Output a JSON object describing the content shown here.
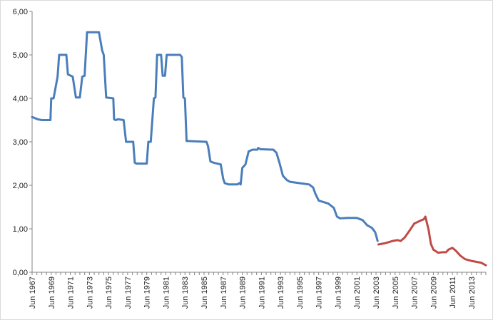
{
  "chart_data": {
    "type": "line",
    "title": "",
    "xlabel": "",
    "ylabel": "",
    "ylim": [
      0,
      6
    ],
    "y_ticks": [
      "0,00",
      "1,00",
      "2,00",
      "3,00",
      "4,00",
      "5,00",
      "6,00"
    ],
    "x_ticks": [
      "Jun 1967",
      "Jun 1969",
      "Jun 1971",
      "Jun 1973",
      "Jun 1975",
      "Jun 1977",
      "Jun 1979",
      "Jun 1981",
      "Jun 1983",
      "Jun 1985",
      "Jun 1987",
      "Jun 1989",
      "Jun 1991",
      "Jun 1993",
      "Jun 1995",
      "Jun 1997",
      "Jun 1999",
      "Jun 2001",
      "Jun 2003",
      "Jun 2005",
      "Jun 2007",
      "Jun 2009",
      "Jun 2011",
      "Jun 2013"
    ],
    "x_range": [
      "1967-06",
      "2014-12"
    ],
    "grid": false,
    "legend": "none",
    "series": [
      {
        "color": "#4a7ebb",
        "points": [
          [
            "1967-06",
            3.57
          ],
          [
            "1968-01",
            3.52
          ],
          [
            "1968-06",
            3.5
          ],
          [
            "1969-05",
            3.5
          ],
          [
            "1969-06",
            4.0
          ],
          [
            "1969-09",
            4.0
          ],
          [
            "1970-02",
            4.5
          ],
          [
            "1970-04",
            5.0
          ],
          [
            "1971-01",
            5.0
          ],
          [
            "1971-03",
            4.55
          ],
          [
            "1971-09",
            4.5
          ],
          [
            "1972-01",
            4.02
          ],
          [
            "1972-06",
            4.02
          ],
          [
            "1972-09",
            4.5
          ],
          [
            "1972-12",
            4.52
          ],
          [
            "1973-03",
            5.52
          ],
          [
            "1974-06",
            5.52
          ],
          [
            "1974-10",
            5.1
          ],
          [
            "1974-12",
            5.0
          ],
          [
            "1975-03",
            4.02
          ],
          [
            "1975-12",
            4.0
          ],
          [
            "1976-01",
            3.52
          ],
          [
            "1976-03",
            3.5
          ],
          [
            "1976-06",
            3.52
          ],
          [
            "1977-01",
            3.5
          ],
          [
            "1977-04",
            3.0
          ],
          [
            "1978-01",
            3.0
          ],
          [
            "1978-03",
            2.52
          ],
          [
            "1978-05",
            2.5
          ],
          [
            "1979-06",
            2.5
          ],
          [
            "1979-08",
            3.0
          ],
          [
            "1979-11",
            3.0
          ],
          [
            "1980-01",
            3.5
          ],
          [
            "1980-03",
            4.0
          ],
          [
            "1980-05",
            4.02
          ],
          [
            "1980-07",
            5.0
          ],
          [
            "1980-12",
            5.0
          ],
          [
            "1981-02",
            4.52
          ],
          [
            "1981-05",
            4.52
          ],
          [
            "1981-07",
            5.0
          ],
          [
            "1982-12",
            5.0
          ],
          [
            "1983-02",
            4.95
          ],
          [
            "1983-04",
            4.02
          ],
          [
            "1983-06",
            4.0
          ],
          [
            "1983-08",
            3.02
          ],
          [
            "1985-09",
            3.0
          ],
          [
            "1985-11",
            2.9
          ],
          [
            "1986-02",
            2.55
          ],
          [
            "1986-06",
            2.52
          ],
          [
            "1987-03",
            2.48
          ],
          [
            "1987-06",
            2.15
          ],
          [
            "1987-08",
            2.05
          ],
          [
            "1988-01",
            2.02
          ],
          [
            "1988-12",
            2.02
          ],
          [
            "1989-02",
            2.05
          ],
          [
            "1989-04",
            2.02
          ],
          [
            "1989-06",
            2.4
          ],
          [
            "1989-10",
            2.48
          ],
          [
            "1990-02",
            2.78
          ],
          [
            "1990-07",
            2.82
          ],
          [
            "1991-01",
            2.82
          ],
          [
            "1991-02",
            2.86
          ],
          [
            "1991-05",
            2.83
          ],
          [
            "1992-09",
            2.82
          ],
          [
            "1993-01",
            2.75
          ],
          [
            "1993-05",
            2.5
          ],
          [
            "1993-09",
            2.22
          ],
          [
            "1994-02",
            2.12
          ],
          [
            "1994-06",
            2.08
          ],
          [
            "1995-06",
            2.05
          ],
          [
            "1996-06",
            2.02
          ],
          [
            "1996-11",
            1.95
          ],
          [
            "1997-02",
            1.8
          ],
          [
            "1997-06",
            1.65
          ],
          [
            "1998-06",
            1.58
          ],
          [
            "1999-01",
            1.48
          ],
          [
            "1999-05",
            1.28
          ],
          [
            "1999-09",
            1.24
          ],
          [
            "2000-06",
            1.25
          ],
          [
            "2001-06",
            1.25
          ],
          [
            "2002-01",
            1.2
          ],
          [
            "2002-07",
            1.08
          ],
          [
            "2003-01",
            1.02
          ],
          [
            "2003-05",
            0.92
          ],
          [
            "2003-08",
            0.72
          ]
        ]
      },
      {
        "color": "#be4b48",
        "points": [
          [
            "2003-09",
            0.64
          ],
          [
            "2004-06",
            0.67
          ],
          [
            "2005-03",
            0.72
          ],
          [
            "2005-09",
            0.74
          ],
          [
            "2006-01",
            0.72
          ],
          [
            "2006-06",
            0.8
          ],
          [
            "2007-01",
            0.98
          ],
          [
            "2007-06",
            1.12
          ],
          [
            "2008-01",
            1.18
          ],
          [
            "2008-06",
            1.22
          ],
          [
            "2008-08",
            1.28
          ],
          [
            "2008-12",
            0.98
          ],
          [
            "2009-03",
            0.65
          ],
          [
            "2009-06",
            0.52
          ],
          [
            "2009-12",
            0.45
          ],
          [
            "2010-06",
            0.46
          ],
          [
            "2010-10",
            0.46
          ],
          [
            "2011-01",
            0.52
          ],
          [
            "2011-06",
            0.56
          ],
          [
            "2011-10",
            0.5
          ],
          [
            "2012-04",
            0.38
          ],
          [
            "2012-10",
            0.3
          ],
          [
            "2013-06",
            0.26
          ],
          [
            "2014-06",
            0.22
          ],
          [
            "2014-12",
            0.16
          ]
        ]
      }
    ]
  }
}
